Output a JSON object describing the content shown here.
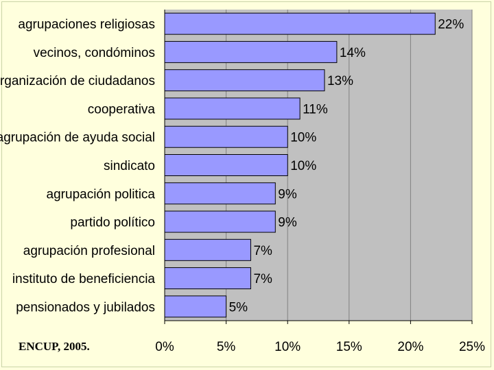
{
  "chart_data": {
    "type": "bar",
    "orientation": "horizontal",
    "categories": [
      "agrupaciones religiosas",
      "vecinos, condóminos",
      "organización de ciudadanos",
      "cooperativa",
      "agrupación de ayuda social",
      "sindicato",
      "agrupación politica",
      "partido político",
      "agrupación profesional",
      "instituto de beneficiencia",
      "pensionados y jubilados"
    ],
    "values": [
      22,
      14,
      13,
      11,
      10,
      10,
      9,
      9,
      7,
      7,
      5
    ],
    "value_labels": [
      "22%",
      "14%",
      "13%",
      "11%",
      "10%",
      "10%",
      "9%",
      "9%",
      "7%",
      "7%",
      "5%"
    ],
    "xlim": [
      0,
      25
    ],
    "xticks": [
      0,
      5,
      10,
      15,
      20,
      25
    ],
    "xtick_labels": [
      "0%",
      "5%",
      "10%",
      "15%",
      "20%",
      "25%"
    ],
    "grid": true,
    "title": "",
    "xlabel": "",
    "ylabel": ""
  },
  "source": "ENCUP, 2005.",
  "colors": {
    "background": "#ffffdd",
    "plot_area": "#c0c0c0",
    "bar_fill": "#9999ff",
    "bar_stroke": "#000000",
    "grid": "#808080"
  }
}
